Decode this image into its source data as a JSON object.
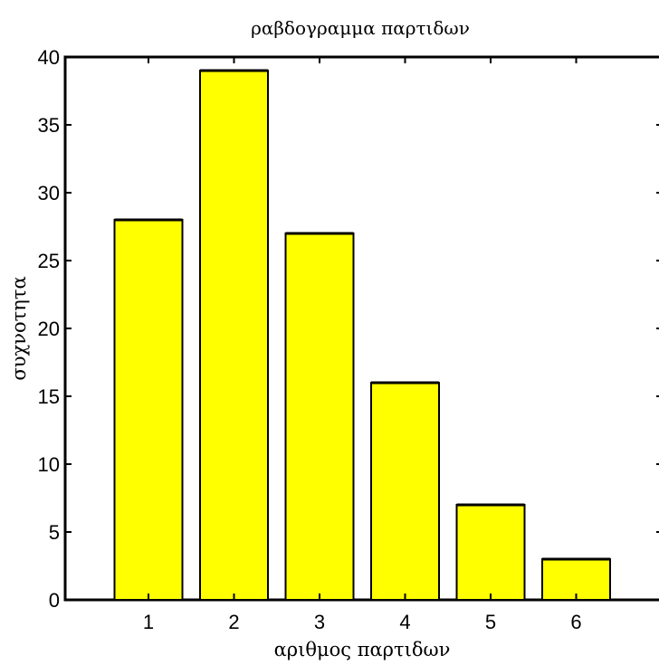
{
  "chart_data": {
    "type": "bar",
    "title": "ραβδογραμμα παρτιδων",
    "xlabel": "αριθμος παρτιδων",
    "ylabel": "συχνοτητα",
    "categories": [
      "1",
      "2",
      "3",
      "4",
      "5",
      "6"
    ],
    "values": [
      28,
      39,
      27,
      16,
      7,
      3
    ],
    "ylim": [
      0,
      40
    ],
    "yticks": [
      0,
      5,
      10,
      15,
      20,
      25,
      30,
      35,
      40
    ],
    "grid": false,
    "legend": "none",
    "bar_color": "#ffff00",
    "bar_edge_color": "#000000"
  }
}
